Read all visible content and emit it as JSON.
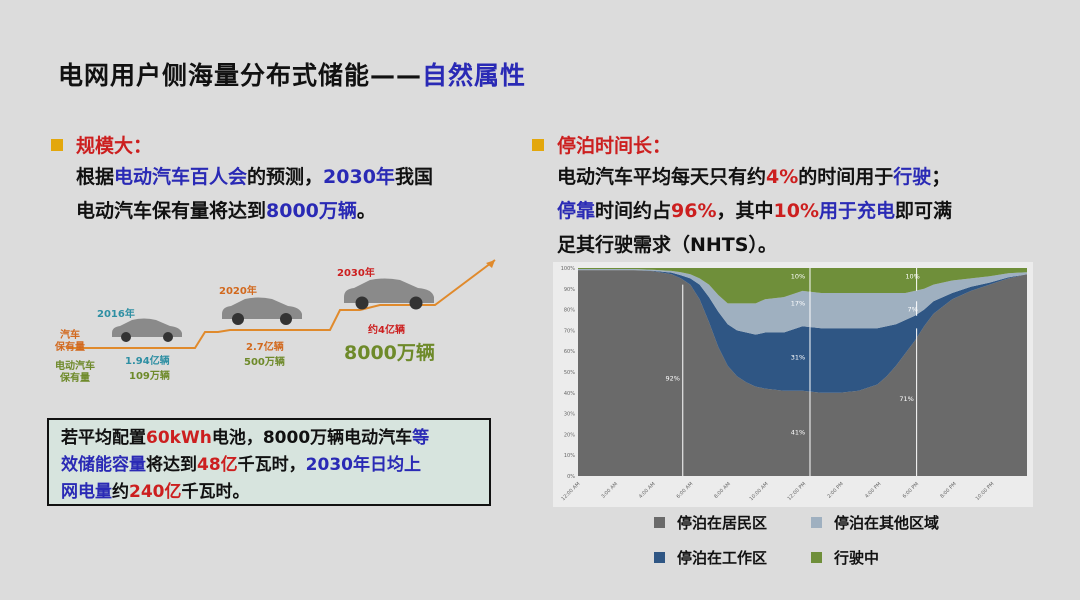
{
  "slide": {
    "title_main": "电网用户侧海量分布式储能——",
    "title_highlight": "自然属性"
  },
  "left": {
    "heading": "规模大：",
    "para_line1": [
      "根据",
      "电动汽车百人会",
      "的预测，",
      "2030年",
      "我国"
    ],
    "para_line2": [
      "电动汽车保有量将达到",
      "8000万辆",
      "。"
    ],
    "growth": {
      "row_label_cars": "汽车\n保有量",
      "row_label_ev": "电动汽车\n保有量",
      "milestones": [
        {
          "year": "2016年",
          "cars": "1.94亿辆",
          "ev": "109万辆"
        },
        {
          "year": "2020年",
          "cars": "2.7亿辆",
          "ev": "500万辆"
        },
        {
          "year": "2030年",
          "cars": "约4亿辆",
          "ev": "8000万辆"
        }
      ]
    },
    "box_line1": [
      "若平均配置",
      "60kWh",
      "电池，8000万辆电动汽车",
      "等"
    ],
    "box_line2": [
      "效储能容量",
      "将达到",
      "48亿",
      "千瓦时，",
      "2030年",
      "日均上"
    ],
    "box_line3": [
      "网电量",
      "约",
      "240亿",
      "千瓦时。"
    ]
  },
  "right": {
    "heading": "停泊时间长：",
    "para_line1": [
      "电动汽车平均每天只有约",
      "4%",
      "的时间用于",
      "行驶",
      "；"
    ],
    "para_line2": [
      "停靠",
      "时间约占",
      "96%",
      "，其中",
      "10%",
      "用于充电",
      "即可满"
    ],
    "para_line3": [
      "足其行驶需求（NHTS）。"
    ]
  },
  "chart_data": {
    "type": "area",
    "stacked": true,
    "x_tick_labels": [
      "12:00 AM",
      "3:00 AM",
      "4:00 AM",
      "6:00 AM",
      "8:00 AM",
      "10:00 AM",
      "12:00 PM",
      "2:00 PM",
      "4:00 PM",
      "6:00 PM",
      "8:00 PM",
      "10:00 PM"
    ],
    "y_tick_labels": [
      "0%",
      "10%",
      "20%",
      "30%",
      "40%",
      "50%",
      "60%",
      "70%",
      "80%",
      "90%",
      "100%"
    ],
    "ylim": [
      0,
      100
    ],
    "x_hours": [
      0,
      1,
      2,
      3,
      4,
      5,
      5.5,
      6,
      6.5,
      7,
      7.5,
      8,
      8.5,
      9,
      9.5,
      10,
      11,
      12,
      13,
      14,
      15,
      16,
      16.5,
      17,
      17.5,
      18,
      18.5,
      19,
      20,
      21,
      22,
      23,
      24
    ],
    "series": [
      {
        "name": "停泊在居民区",
        "color": "#6a6a6a",
        "values": [
          99,
          99,
          99,
          99,
          98.5,
          97,
          95,
          92,
          85,
          74,
          62,
          53,
          48,
          45,
          43,
          42,
          41,
          41,
          40,
          40,
          41,
          44,
          48,
          53,
          59,
          65,
          72,
          78,
          85,
          89,
          92,
          95,
          97
        ]
      },
      {
        "name": "停泊在工作区",
        "color": "#2f5684",
        "values": [
          0,
          0,
          0,
          0,
          0.2,
          0.8,
          1.5,
          3,
          7,
          12,
          17,
          20,
          22,
          24,
          25,
          27,
          28,
          31,
          31,
          31,
          30,
          27,
          24,
          20,
          16,
          12,
          8,
          6,
          3,
          2,
          1,
          0.5,
          0
        ]
      },
      {
        "name": "停泊在其他区域",
        "color": "#9fb0c0",
        "values": [
          0.5,
          0.5,
          0.5,
          0.5,
          0.5,
          0.8,
          1.5,
          2,
          3,
          6,
          8,
          10,
          13,
          14,
          15,
          16,
          17,
          17,
          17,
          17,
          17,
          17,
          16,
          15,
          13,
          12,
          10,
          8,
          6,
          4,
          3,
          2,
          1
        ]
      },
      {
        "name": "行驶中",
        "color": "#6f8f3a",
        "values": [
          0.5,
          0.5,
          0.5,
          0.5,
          0.8,
          1.4,
          2,
          3,
          5,
          8,
          13,
          17,
          17,
          17,
          17,
          15,
          14,
          11,
          12,
          12,
          12,
          12,
          12,
          12,
          12,
          11,
          10,
          8,
          6,
          5,
          4,
          2.5,
          2
        ]
      }
    ],
    "annotations": [
      "92%",
      "41%",
      "31%",
      "17%",
      "10%",
      "10%",
      "7%",
      "71%"
    ]
  }
}
